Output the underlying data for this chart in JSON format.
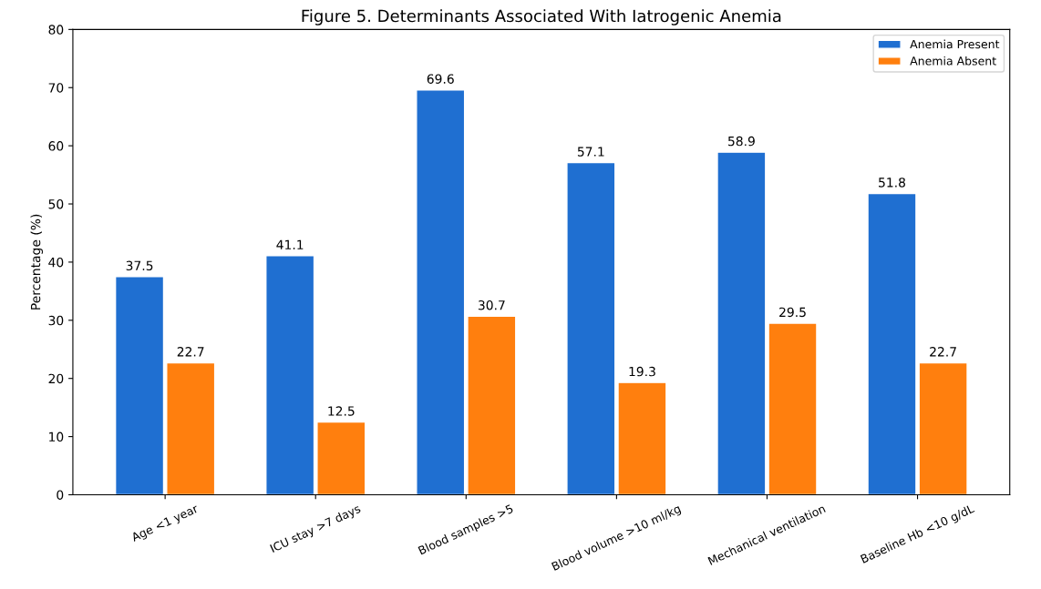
{
  "chart_data": {
    "type": "bar",
    "title": "Figure 5. Determinants Associated With Iatrogenic Anemia",
    "ylabel": "Percentage (%)",
    "categories": [
      "Age <1 year",
      "ICU stay >7 days",
      "Blood samples >5",
      "Blood volume >10 ml/kg",
      "Mechanical ventilation",
      "Baseline Hb <10 g/dL"
    ],
    "series": [
      {
        "name": "Anemia Present",
        "color": "#1f6fd1",
        "values": [
          37.5,
          41.1,
          69.6,
          57.1,
          58.9,
          51.8
        ]
      },
      {
        "name": "Anemia Absent",
        "color": "#ff7f0e",
        "values": [
          22.7,
          12.5,
          30.7,
          19.3,
          29.5,
          22.7
        ]
      }
    ],
    "ylim": [
      0,
      80
    ],
    "yticks": [
      0,
      10,
      20,
      30,
      40,
      50,
      60,
      70,
      80
    ],
    "data_labels": true,
    "legend": "top right"
  }
}
